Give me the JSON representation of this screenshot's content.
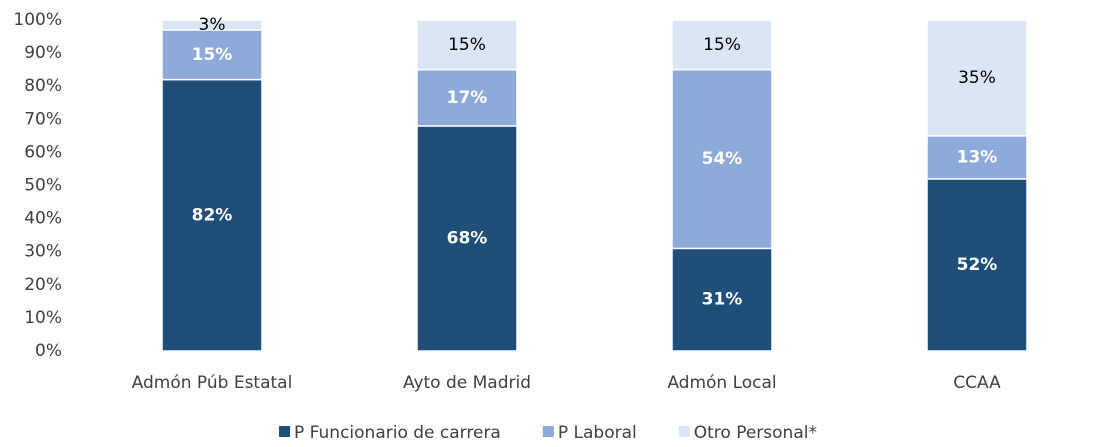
{
  "chart_data": {
    "type": "stacked_bar",
    "categories": [
      "Admón Púb Estatal",
      "Ayto de Madrid",
      "Admón Local",
      "CCAA"
    ],
    "series": [
      {
        "name": "P Funcionario de carrera",
        "color": "#1f4e79",
        "values": [
          82,
          68,
          31,
          52
        ],
        "value_labels": [
          "82%",
          "68%",
          "31%",
          "52%"
        ]
      },
      {
        "name": "P Laboral",
        "color": "#8eaadb",
        "values": [
          15,
          17,
          54,
          13
        ],
        "value_labels": [
          "15%",
          "17%",
          "54%",
          "13%"
        ]
      },
      {
        "name": "Otro Personal*",
        "color": "#dae6f5",
        "values": [
          3,
          15,
          15,
          35
        ],
        "value_labels": [
          "3%",
          "15%",
          "15%",
          "35%"
        ]
      }
    ],
    "ylim": [
      0,
      100
    ],
    "yticks": [
      {
        "value": 0,
        "label": "0%"
      },
      {
        "value": 10,
        "label": "10%"
      },
      {
        "value": 20,
        "label": "20%"
      },
      {
        "value": 30,
        "label": "30%"
      },
      {
        "value": 40,
        "label": "40%"
      },
      {
        "value": 50,
        "label": "50%"
      },
      {
        "value": 60,
        "label": "60%"
      },
      {
        "value": 70,
        "label": "70%"
      },
      {
        "value": 80,
        "label": "80%"
      },
      {
        "value": 90,
        "label": "90%"
      },
      {
        "value": 100,
        "label": "100%"
      }
    ],
    "grid": false,
    "legend": "bottom"
  }
}
